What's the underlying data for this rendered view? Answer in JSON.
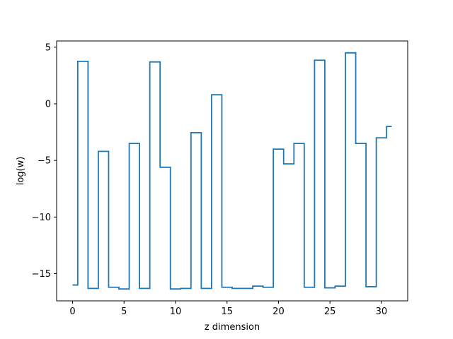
{
  "chart_data": {
    "type": "line",
    "drawstyle": "steps-mid",
    "title": "",
    "xlabel": "z dimension",
    "ylabel": "log(w)",
    "xlim": [
      -1.55,
      32.55
    ],
    "ylim": [
      -17.4,
      5.55
    ],
    "xticks": [
      0,
      5,
      10,
      15,
      20,
      25,
      30
    ],
    "yticks": [
      5,
      0,
      -5,
      -10,
      -15
    ],
    "ytick_labels": [
      "5",
      "0",
      "−5",
      "−10",
      "−15"
    ],
    "grid": false,
    "legend": "none",
    "series": [
      {
        "color": "#1f77b4",
        "x": [
          0,
          1,
          2,
          3,
          4,
          5,
          6,
          7,
          8,
          9,
          10,
          11,
          12,
          13,
          14,
          15,
          16,
          17,
          18,
          19,
          20,
          21,
          22,
          23,
          24,
          25,
          26,
          27,
          28,
          29,
          30,
          31
        ],
        "values": [
          -16.0,
          3.75,
          -16.3,
          -4.2,
          -16.2,
          -16.35,
          -3.5,
          -16.3,
          3.7,
          -5.6,
          -16.35,
          -16.3,
          -2.55,
          -16.3,
          0.8,
          -16.2,
          -16.3,
          -16.3,
          -16.1,
          -16.2,
          -4.0,
          -5.3,
          -3.5,
          -16.2,
          3.85,
          -16.25,
          -16.1,
          4.5,
          -3.5,
          -16.15,
          -3.0,
          -2.0
        ]
      }
    ]
  }
}
